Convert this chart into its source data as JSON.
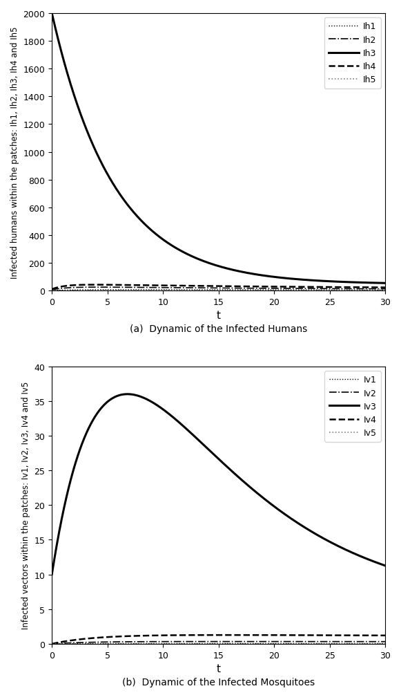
{
  "subplot_a": {
    "title": "(a)  Dynamic of the Infected Humans",
    "ylabel": "Infected humans within the patches: Ih1, Ih2, Ih3, Ih4 and Ih5",
    "xlabel": "t",
    "xlim": [
      0,
      30
    ],
    "ylim": [
      0,
      2000
    ],
    "yticks": [
      0,
      200,
      400,
      600,
      800,
      1000,
      1200,
      1400,
      1600,
      1800,
      2000
    ],
    "xticks": [
      0,
      5,
      10,
      15,
      20,
      25,
      30
    ],
    "legend_labels": [
      "Ih1",
      "Ih2",
      "Ih3",
      "Ih4",
      "Ih5"
    ]
  },
  "subplot_b": {
    "title": "(b)  Dynamic of the Infected Mosquitoes",
    "ylabel": "Infected vectors within the patches: Iv1, Iv2, Iv3, Iv4 and Iv5",
    "xlabel": "t",
    "xlim": [
      0,
      30
    ],
    "ylim": [
      0,
      40
    ],
    "yticks": [
      0,
      5,
      10,
      15,
      20,
      25,
      30,
      35,
      40
    ],
    "xticks": [
      0,
      5,
      10,
      15,
      20,
      25,
      30
    ],
    "legend_labels": [
      "Iv1",
      "Iv2",
      "Iv3",
      "Iv4",
      "Iv5"
    ]
  }
}
